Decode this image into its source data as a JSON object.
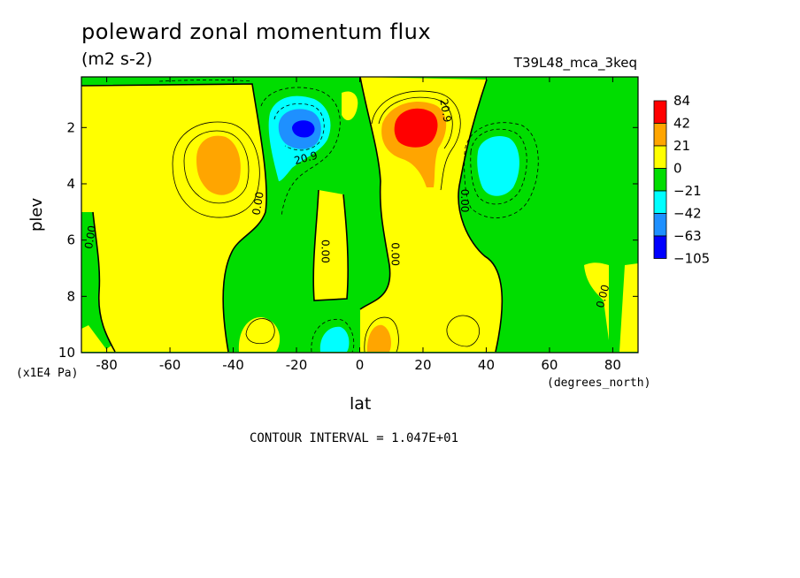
{
  "chart_data": {
    "type": "heatmap",
    "title": "poleward zonal momentum flux",
    "units": "(m2 s-2)",
    "run_label": "T39L48_mca_3keq",
    "xlabel": "lat",
    "x_units": "(degrees_north)",
    "ylabel": "plev",
    "y_units": "(x1E4 Pa)",
    "contour_interval_text": "CONTOUR INTERVAL = 1.047E+01",
    "xlim": [
      -88,
      88
    ],
    "ylim": [
      10,
      0.2
    ],
    "x_ticks": [
      -80,
      -60,
      -40,
      -20,
      0,
      20,
      40,
      60,
      80
    ],
    "y_ticks": [
      2,
      4,
      6,
      8,
      10
    ],
    "colorbar": {
      "labels": [
        "84",
        "42",
        "21",
        "0",
        "−21",
        "−42",
        "−63",
        "−105"
      ],
      "colors": [
        "#ff0000",
        "#ffa500",
        "#ffff00",
        "#00dd00",
        "#00ffff",
        "#1e90ff",
        "#0000ff"
      ]
    },
    "contour_labels": [
      {
        "text": "20.9",
        "lat": -17,
        "plev": 3.1,
        "rotate": -15
      },
      {
        "text": "20.9",
        "lat": 27,
        "plev": 1.4,
        "rotate": 80
      },
      {
        "text": "0.00",
        "lat": -32,
        "plev": 4.7,
        "rotate": -80
      },
      {
        "text": "0.00",
        "lat": -11,
        "plev": 6.4,
        "rotate": 90
      },
      {
        "text": "0.00",
        "lat": 11,
        "plev": 6.5,
        "rotate": 90
      },
      {
        "text": "0.00",
        "lat": 33,
        "plev": 4.6,
        "rotate": 90
      },
      {
        "text": "0.00",
        "lat": -85,
        "plev": 5.9,
        "rotate": -80
      },
      {
        "text": "0.00",
        "lat": 77,
        "plev": 8.0,
        "rotate": -75
      }
    ],
    "extrema": [
      {
        "region": "north subtropics upper",
        "lat": 18,
        "plev": 2.1,
        "value_class": "84"
      },
      {
        "region": "south subtropics upper",
        "lat": -18,
        "plev": 2.0,
        "value_class": "-63"
      },
      {
        "region": "south midlatitude",
        "lat": -45,
        "plev": 3.0,
        "value_class": "21"
      },
      {
        "region": "north midlatitude",
        "lat": 45,
        "plev": 3.0,
        "value_class": "-21"
      },
      {
        "region": "near surface south",
        "lat": -8,
        "plev": 9.6,
        "value_class": "-21"
      },
      {
        "region": "near surface north",
        "lat": 7,
        "plev": 9.5,
        "value_class": "21"
      }
    ]
  }
}
